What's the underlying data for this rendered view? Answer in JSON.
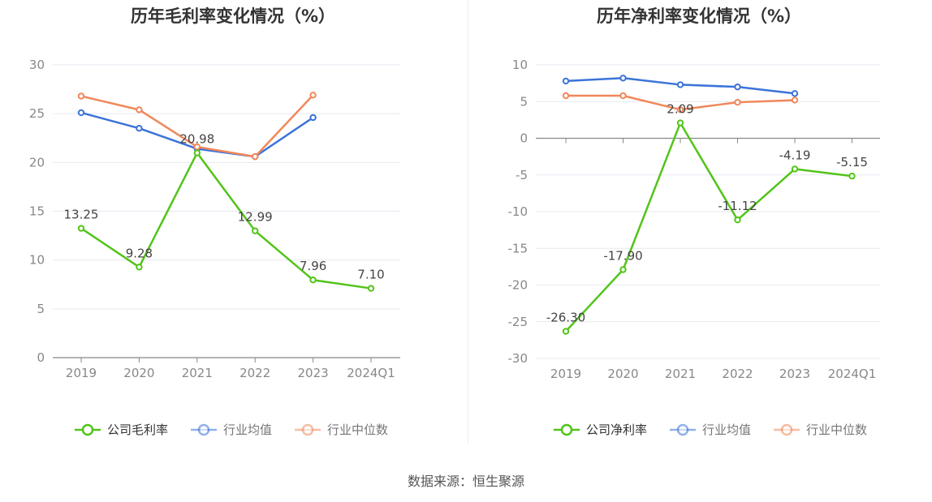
{
  "source_label": "数据来源：恒生聚源",
  "chart_data": [
    {
      "type": "line",
      "title": "历年毛利率变化情况（%）",
      "categories": [
        "2019",
        "2020",
        "2021",
        "2022",
        "2023",
        "2024Q1"
      ],
      "ylim": [
        0,
        30
      ],
      "yticks": [
        0,
        5,
        10,
        15,
        20,
        25,
        30
      ],
      "grid": true,
      "legend_position": "bottom",
      "series": [
        {
          "name": "公司毛利率",
          "color": "#52c41a",
          "values": [
            13.25,
            9.28,
            20.98,
            12.99,
            7.96,
            7.1
          ],
          "labels": [
            "13.25",
            "9.28",
            "20.98",
            "12.99",
            "7.96",
            "7.10"
          ]
        },
        {
          "name": "行业均值",
          "color": "#3b73d9",
          "values": [
            25.1,
            23.5,
            21.4,
            20.6,
            24.6,
            null
          ]
        },
        {
          "name": "行业中位数",
          "color": "#f0885a",
          "values": [
            26.8,
            25.4,
            21.6,
            20.6,
            26.9,
            null
          ]
        }
      ]
    },
    {
      "type": "line",
      "title": "历年净利率变化情况（%）",
      "categories": [
        "2019",
        "2020",
        "2021",
        "2022",
        "2023",
        "2024Q1"
      ],
      "ylim": [
        -30,
        10
      ],
      "yticks": [
        -30,
        -25,
        -20,
        -15,
        -10,
        -5,
        0,
        5,
        10
      ],
      "grid": true,
      "legend_position": "bottom",
      "series": [
        {
          "name": "公司净利率",
          "color": "#52c41a",
          "values": [
            -26.3,
            -17.9,
            2.09,
            -11.12,
            -4.19,
            -5.15
          ],
          "labels": [
            "-26.30",
            "-17.90",
            "2.09",
            "-11.12",
            "-4.19",
            "-5.15"
          ]
        },
        {
          "name": "行业均值",
          "color": "#3b73d9",
          "values": [
            7.8,
            8.2,
            7.3,
            7.0,
            6.1,
            null
          ]
        },
        {
          "name": "行业中位数",
          "color": "#f0885a",
          "values": [
            5.8,
            5.8,
            3.9,
            4.9,
            5.2,
            null
          ]
        }
      ]
    }
  ]
}
